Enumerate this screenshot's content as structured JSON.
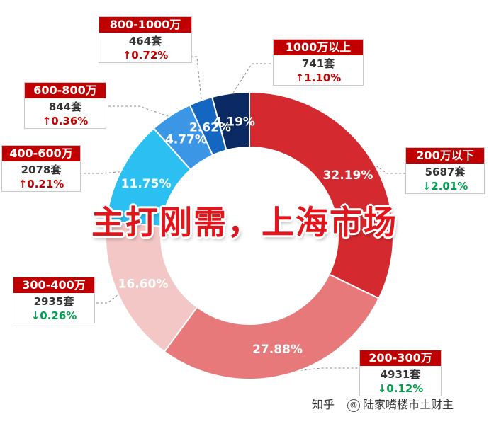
{
  "chart_data": {
    "type": "pie",
    "title": "",
    "categories": [
      "200万以下",
      "200-300万",
      "300-400万",
      "400-600万",
      "600-800万",
      "800-1000万",
      "1000万以上"
    ],
    "values": [
      32.19,
      27.88,
      16.6,
      11.75,
      4.77,
      2.62,
      4.19
    ],
    "value_labels": [
      "32.19%",
      "27.88%",
      "16.60%",
      "11.75%",
      "4.77%",
      "2.62%",
      "4.19%"
    ],
    "counts": [
      "5687套",
      "4931套",
      "2935套",
      "2078套",
      "844套",
      "464套",
      "741套"
    ],
    "changes": [
      "↓2.01%",
      "↓0.12%",
      "↓0.26%",
      "↑0.21%",
      "↑0.36%",
      "↑0.72%",
      "↑1.10%"
    ],
    "change_direction": [
      "down",
      "down",
      "down",
      "up",
      "up",
      "up",
      "up"
    ],
    "colors": [
      "#d42a2f",
      "#e8797b",
      "#f3c7c5",
      "#2cc0f2",
      "#3c96e6",
      "#1566c1",
      "#0b2a63"
    ],
    "legend": "callouts"
  },
  "headline": "主打刚需，上海市场",
  "footer": {
    "source": "知乎",
    "author": "陆家嘴楼市土财主"
  },
  "colors": {
    "up": "#c00000",
    "down": "#00a050",
    "header": "#c00000"
  }
}
